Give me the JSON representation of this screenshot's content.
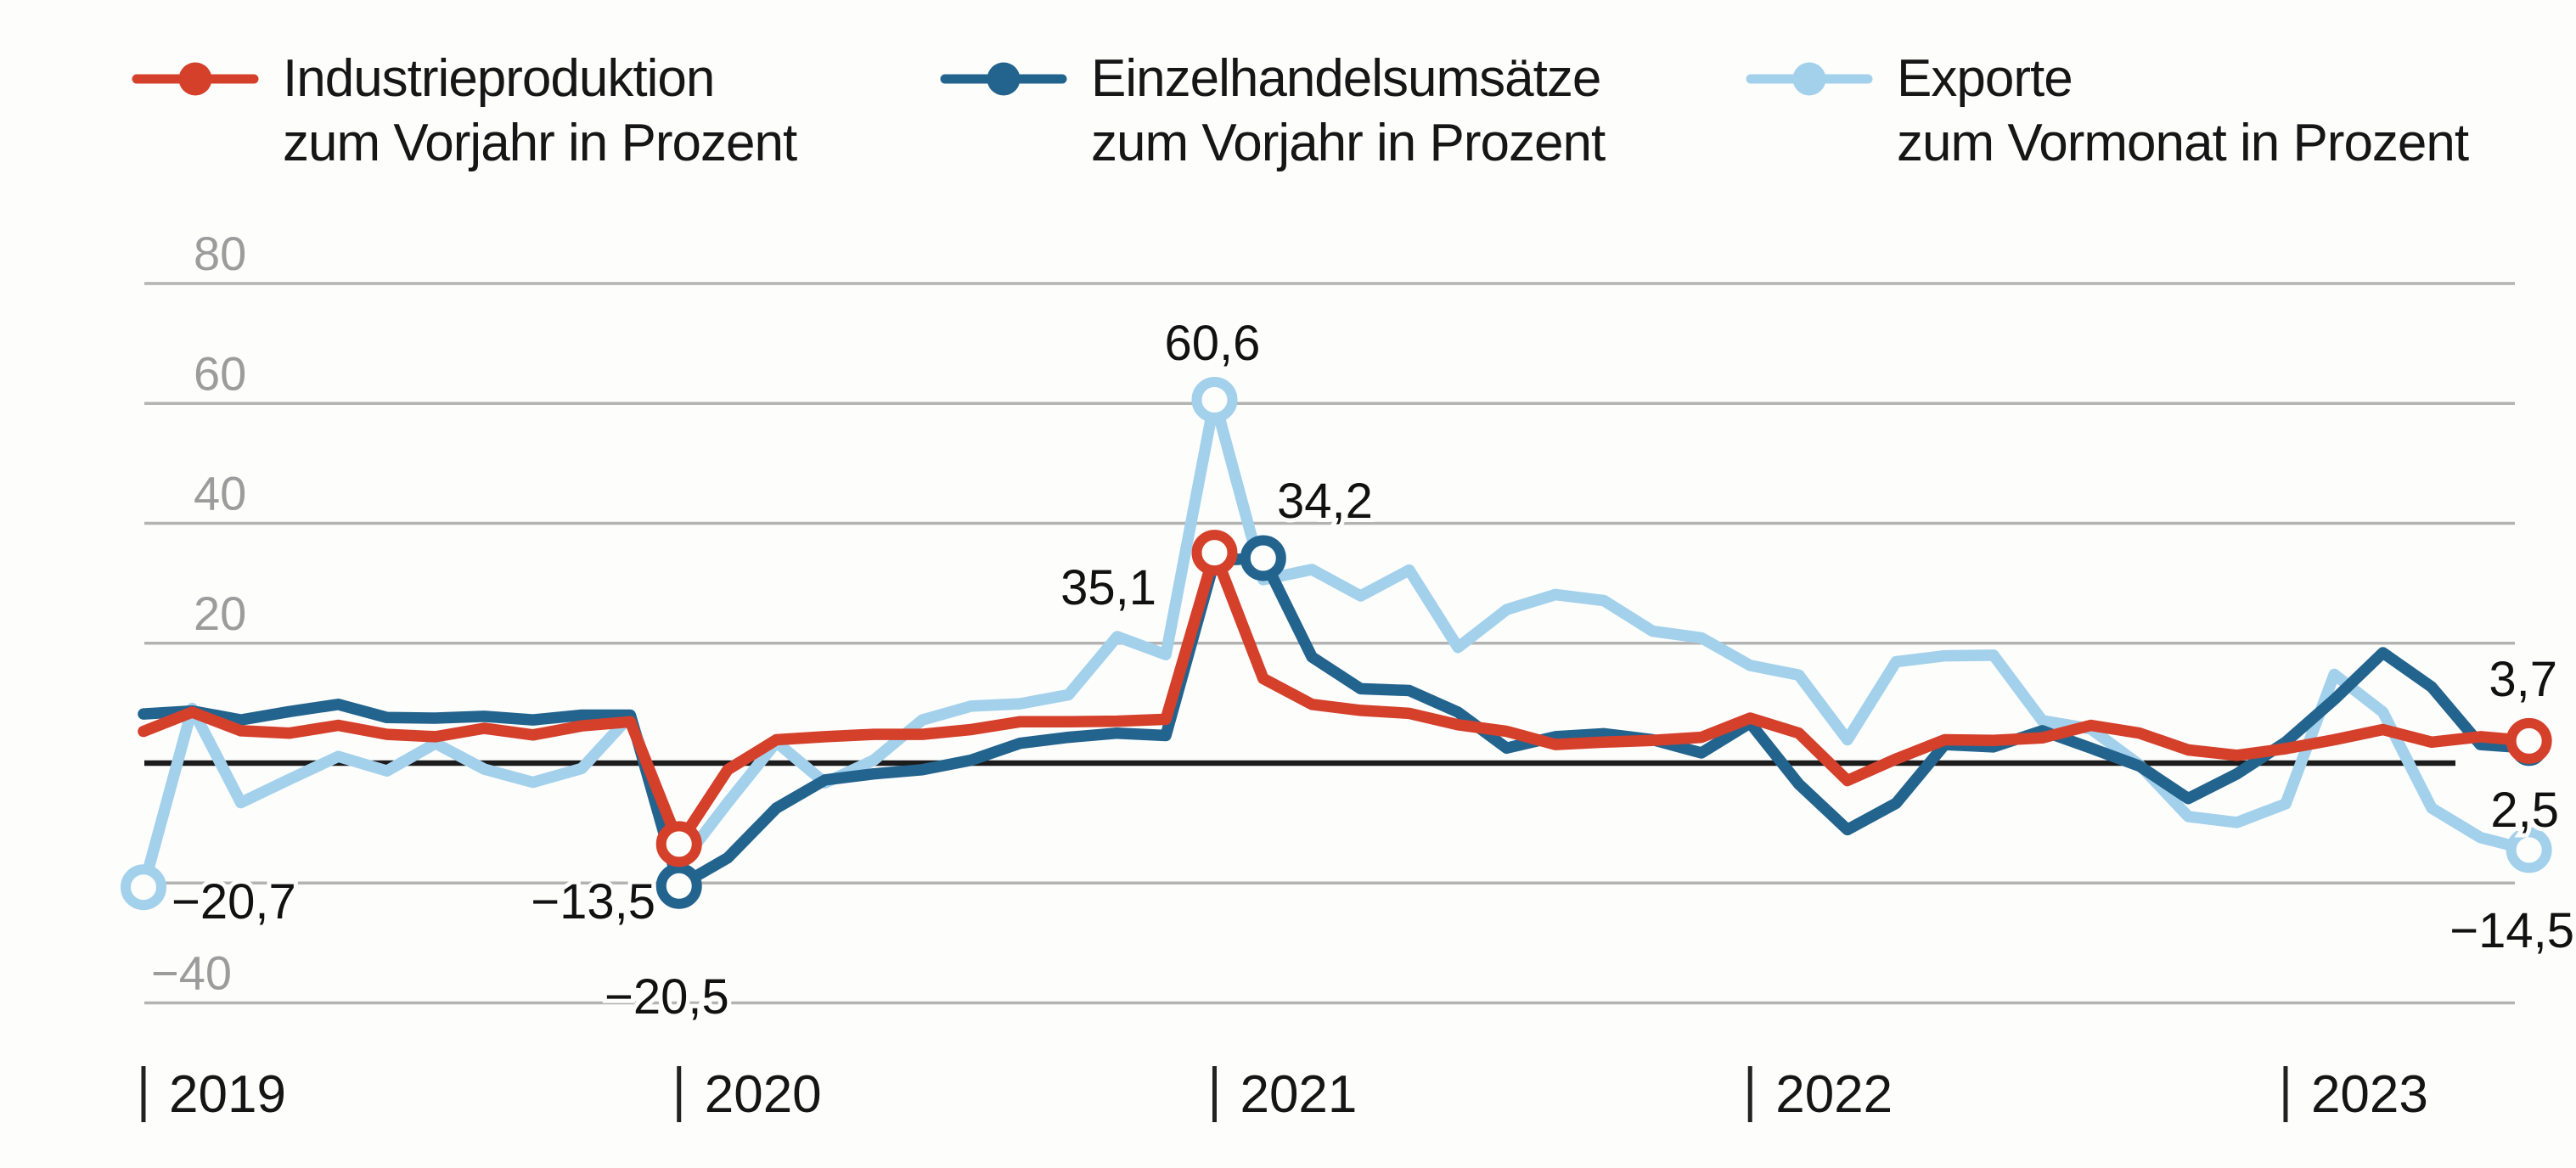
{
  "legend": [
    {
      "line1": "Industrieproduktion",
      "line2": "zum Vorjahr in Prozent",
      "color": "#d5402b"
    },
    {
      "line1": "Einzelhandelsumsätze",
      "line2": "zum Vorjahr in Prozent",
      "color": "#23648e"
    },
    {
      "line1": "Exporte",
      "line2": "zum Vormonat in Prozent",
      "color": "#a3d1ec"
    }
  ],
  "colors": {
    "industrieproduktion": "#d5402b",
    "einzelhandelsumsaetze": "#23648e",
    "exporte": "#a3d1ec",
    "gridline": "#b3b3b3",
    "zero_line": "#1c1c1c",
    "axis_label": "#9c9c9c",
    "text": "#151515",
    "background": "#fdfdfc"
  },
  "chart_data": {
    "type": "line",
    "ylim": [
      -40,
      80
    ],
    "grid": true,
    "legend_position": "top",
    "y_gridline_values": [
      80,
      60,
      40,
      20,
      0,
      -20,
      -40
    ],
    "y_axis_labels": [
      {
        "value": 80,
        "text": "80"
      },
      {
        "value": 60,
        "text": "60"
      },
      {
        "value": 40,
        "text": "40"
      },
      {
        "value": 20,
        "text": "20"
      },
      {
        "value": -40,
        "text": "−40"
      }
    ],
    "x_ticks": [
      {
        "index": 0,
        "label": "2019"
      },
      {
        "index": 11,
        "label": "2020"
      },
      {
        "index": 22,
        "label": "2021"
      },
      {
        "index": 33,
        "label": "2022"
      },
      {
        "index": 44,
        "label": "2023"
      }
    ],
    "points_per_year": 11,
    "series": [
      {
        "name": "Exporte zum Vormonat in Prozent",
        "slug": "exporte",
        "color": "#a3d1ec",
        "values": [
          -20.7,
          9.1,
          -6.6,
          -2.7,
          1.1,
          -1.3,
          3.3,
          -1.0,
          -3.2,
          -0.9,
          7.9,
          -17.2,
          -6.6,
          3.5,
          -3.3,
          0.5,
          7.2,
          9.5,
          9.9,
          11.4,
          21.1,
          18.1,
          60.6,
          30.6,
          32.3,
          27.9,
          32.2,
          19.3,
          25.6,
          28.1,
          27.1,
          22.0,
          20.9,
          16.3,
          14.7,
          3.9,
          16.9,
          17.9,
          18.0,
          7.1,
          5.7,
          -0.3,
          -8.9,
          -9.9,
          -6.8,
          14.8,
          8.5,
          -7.5,
          -12.4,
          -14.5
        ],
        "markers": [
          {
            "index": 0,
            "label": "−20,7",
            "lx": 202,
            "ly": 1082,
            "anchor": "start"
          },
          {
            "index": 22,
            "label": "60,6",
            "lx": 1428,
            "ly": 424,
            "anchor": "middle"
          },
          {
            "index": 49,
            "label": "−14,5",
            "lx": 3032,
            "ly": 1116,
            "anchor": "end"
          }
        ]
      },
      {
        "name": "Einzelhandelsumsätze zum Vorjahr in Prozent",
        "slug": "einzelhandelsumsaetze",
        "color": "#23648e",
        "values": [
          8.2,
          8.7,
          7.2,
          8.6,
          9.8,
          7.6,
          7.5,
          7.8,
          7.2,
          8.0,
          8.0,
          -20.5,
          -15.8,
          -7.5,
          -2.8,
          -1.8,
          -1.1,
          0.5,
          3.3,
          4.3,
          5.0,
          4.6,
          33.8,
          34.2,
          17.7,
          12.4,
          12.1,
          8.5,
          2.5,
          4.4,
          4.9,
          3.9,
          1.7,
          6.7,
          -3.5,
          -11.1,
          -6.7,
          3.1,
          2.7,
          5.4,
          2.5,
          -0.5,
          -5.9,
          -1.8,
          3.5,
          10.6,
          18.4,
          12.7,
          3.1,
          2.5
        ],
        "markers": [
          {
            "index": 11,
            "label": "−20,5",
            "lx": 712,
            "ly": 1194,
            "anchor": "start"
          },
          {
            "index": 23,
            "label": "34,2",
            "lx": 1504,
            "ly": 610,
            "anchor": "start"
          },
          {
            "index": 49,
            "label": "2,5",
            "lx": 3014,
            "ly": 974,
            "anchor": "end",
            "r": 15
          }
        ]
      },
      {
        "name": "Industrieproduktion zum Vorjahr in Prozent",
        "slug": "industrieproduktion",
        "color": "#d5402b",
        "values": [
          5.3,
          8.5,
          5.4,
          5.0,
          6.3,
          4.8,
          4.4,
          5.8,
          4.7,
          6.2,
          6.9,
          -13.5,
          -1.1,
          3.9,
          4.4,
          4.8,
          4.8,
          5.6,
          6.9,
          6.9,
          7.0,
          7.3,
          35.1,
          14.1,
          9.8,
          8.8,
          8.3,
          6.4,
          5.3,
          3.1,
          3.5,
          3.8,
          4.3,
          7.5,
          5.0,
          -2.9,
          0.7,
          3.9,
          3.8,
          4.2,
          6.3,
          5.0,
          2.2,
          1.3,
          2.4,
          3.9,
          5.6,
          3.5,
          4.4,
          3.7
        ],
        "markers": [
          {
            "index": 11,
            "label": "−13,5",
            "lx": 772,
            "ly": 1082,
            "anchor": "end"
          },
          {
            "index": 22,
            "label": "35,1",
            "lx": 1362,
            "ly": 712,
            "anchor": "end"
          },
          {
            "index": 49,
            "label": "3,7",
            "lx": 3012,
            "ly": 820,
            "anchor": "end"
          }
        ]
      }
    ]
  }
}
